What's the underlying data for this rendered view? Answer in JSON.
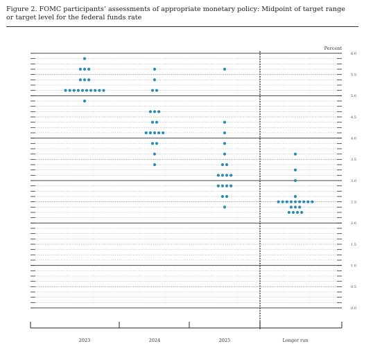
{
  "caption": {
    "line1": "Figure 2.  FOMC participants’ assessments of appropriate monetary policy: Midpoint of target range",
    "line2": "or target level for the federal funds rate"
  },
  "chart_data": {
    "type": "scatter",
    "title": "Figure 2.  FOMC participants’ assessments of appropriate monetary policy: Midpoint of target range or target level for the federal funds rate",
    "ylabel": "Percent",
    "ylim": [
      0,
      6
    ],
    "y_step": 0.125,
    "y_tick_labels": [
      "0.0",
      "0.5",
      "1.0",
      "1.5",
      "2.0",
      "2.5",
      "3.0",
      "3.5",
      "4.0",
      "4.5",
      "5.0",
      "5.5",
      "6.0"
    ],
    "categories": [
      "2023",
      "2024",
      "2025",
      "Longer run"
    ],
    "grid": true,
    "marker_color": "#2a8bb5",
    "series": [
      {
        "category": "2023",
        "points": [
          {
            "y": 5.875,
            "count": 1
          },
          {
            "y": 5.625,
            "count": 3
          },
          {
            "y": 5.375,
            "count": 3
          },
          {
            "y": 5.125,
            "count": 10
          },
          {
            "y": 4.875,
            "count": 1
          }
        ]
      },
      {
        "category": "2024",
        "points": [
          {
            "y": 5.625,
            "count": 1
          },
          {
            "y": 5.375,
            "count": 1
          },
          {
            "y": 5.125,
            "count": 2
          },
          {
            "y": 4.625,
            "count": 3
          },
          {
            "y": 4.375,
            "count": 2
          },
          {
            "y": 4.125,
            "count": 5
          },
          {
            "y": 3.875,
            "count": 2
          },
          {
            "y": 3.625,
            "count": 1
          },
          {
            "y": 3.375,
            "count": 1
          }
        ]
      },
      {
        "category": "2025",
        "points": [
          {
            "y": 5.625,
            "count": 1
          },
          {
            "y": 4.375,
            "count": 1
          },
          {
            "y": 4.125,
            "count": 1
          },
          {
            "y": 3.875,
            "count": 1
          },
          {
            "y": 3.625,
            "count": 1
          },
          {
            "y": 3.375,
            "count": 2
          },
          {
            "y": 3.125,
            "count": 4
          },
          {
            "y": 2.875,
            "count": 4
          },
          {
            "y": 2.625,
            "count": 2
          },
          {
            "y": 2.375,
            "count": 1
          }
        ]
      },
      {
        "category": "Longer run",
        "points": [
          {
            "y": 3.625,
            "count": 1
          },
          {
            "y": 3.25,
            "count": 1
          },
          {
            "y": 3.0,
            "count": 1
          },
          {
            "y": 2.625,
            "count": 1
          },
          {
            "y": 2.5,
            "count": 9
          },
          {
            "y": 2.375,
            "count": 3
          },
          {
            "y": 2.25,
            "count": 4
          }
        ]
      }
    ]
  }
}
